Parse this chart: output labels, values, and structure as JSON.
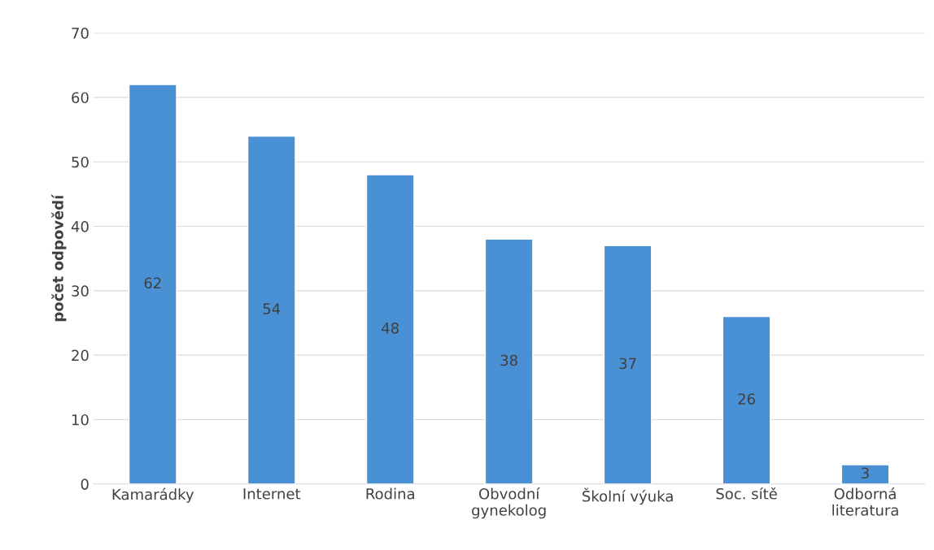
{
  "chart_data": {
    "type": "bar",
    "ylabel": "počet odpovědí",
    "categories": [
      "Kamarádky",
      "Internet",
      "Rodina",
      "Obvodní\ngynekolog",
      "Školní výuka",
      "Soc. sítě",
      "Odborná\nliteratura"
    ],
    "values": [
      62,
      54,
      48,
      38,
      37,
      26,
      3
    ],
    "color": "#4a90d4",
    "ylim": [
      0,
      70
    ],
    "yticks": [
      0,
      10,
      20,
      30,
      40,
      50,
      60,
      70
    ],
    "grid": "y",
    "data_labels": true
  }
}
